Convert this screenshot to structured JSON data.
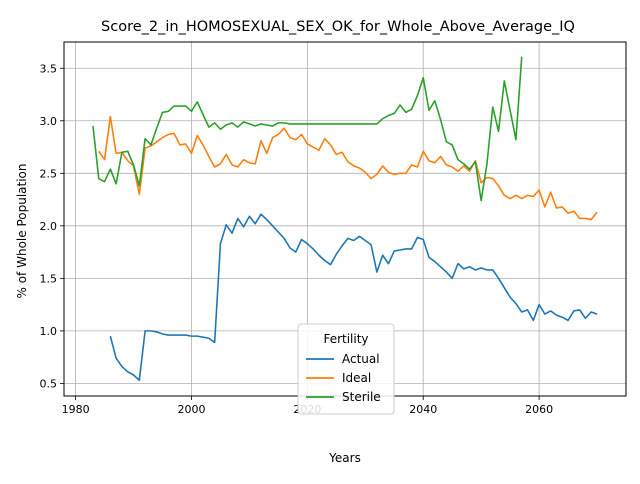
{
  "chart_data": {
    "type": "line",
    "title": "Score_2_in_HOMOSEXUAL_SEX_OK_for_Whole_Above_Average_IQ",
    "xlabel": "Years",
    "ylabel": "% of Whole Population",
    "xlim": [
      1978,
      2075
    ],
    "ylim": [
      0.38,
      3.75
    ],
    "xticks": [
      1980,
      2000,
      2020,
      2040,
      2060
    ],
    "yticks": [
      0.5,
      1.0,
      1.5,
      2.0,
      2.5,
      3.0,
      3.5
    ],
    "grid": true,
    "legend": {
      "title": "Fertility",
      "placement": "lower center"
    },
    "series": [
      {
        "name": "Actual",
        "color": "#1f77b4",
        "points": [
          [
            1986,
            0.95
          ],
          [
            1987,
            0.74
          ],
          [
            1988,
            0.66
          ],
          [
            1989,
            0.61
          ],
          [
            1990,
            0.58
          ],
          [
            1991,
            0.53
          ],
          [
            1992,
            1.0
          ],
          [
            1993,
            1.0
          ],
          [
            1994,
            0.99
          ],
          [
            1995,
            0.97
          ],
          [
            1996,
            0.96
          ],
          [
            1997,
            0.96
          ],
          [
            1998,
            0.96
          ],
          [
            1999,
            0.96
          ],
          [
            2000,
            0.95
          ],
          [
            2001,
            0.95
          ],
          [
            2002,
            0.94
          ],
          [
            2003,
            0.93
          ],
          [
            2004,
            0.89
          ],
          [
            2005,
            1.83
          ],
          [
            2006,
            2.01
          ],
          [
            2007,
            1.93
          ],
          [
            2008,
            2.07
          ],
          [
            2009,
            1.99
          ],
          [
            2010,
            2.09
          ],
          [
            2011,
            2.02
          ],
          [
            2012,
            2.11
          ],
          [
            2013,
            2.06
          ],
          [
            2014,
            2.0
          ],
          [
            2015,
            1.94
          ],
          [
            2016,
            1.88
          ],
          [
            2017,
            1.79
          ],
          [
            2018,
            1.75
          ],
          [
            2019,
            1.87
          ],
          [
            2020,
            1.83
          ],
          [
            2021,
            1.78
          ],
          [
            2022,
            1.72
          ],
          [
            2023,
            1.67
          ],
          [
            2024,
            1.63
          ],
          [
            2025,
            1.73
          ],
          [
            2026,
            1.81
          ],
          [
            2027,
            1.88
          ],
          [
            2028,
            1.86
          ],
          [
            2029,
            1.9
          ],
          [
            2030,
            1.86
          ],
          [
            2031,
            1.82
          ],
          [
            2032,
            1.56
          ],
          [
            2033,
            1.72
          ],
          [
            2034,
            1.64
          ],
          [
            2035,
            1.76
          ],
          [
            2036,
            1.77
          ],
          [
            2037,
            1.78
          ],
          [
            2038,
            1.78
          ],
          [
            2039,
            1.89
          ],
          [
            2040,
            1.87
          ],
          [
            2041,
            1.7
          ],
          [
            2042,
            1.66
          ],
          [
            2043,
            1.61
          ],
          [
            2044,
            1.56
          ],
          [
            2045,
            1.5
          ],
          [
            2046,
            1.64
          ],
          [
            2047,
            1.59
          ],
          [
            2048,
            1.61
          ],
          [
            2049,
            1.58
          ],
          [
            2050,
            1.6
          ],
          [
            2051,
            1.58
          ],
          [
            2052,
            1.58
          ],
          [
            2053,
            1.5
          ],
          [
            2054,
            1.41
          ],
          [
            2055,
            1.32
          ],
          [
            2056,
            1.26
          ],
          [
            2057,
            1.18
          ],
          [
            2058,
            1.2
          ],
          [
            2059,
            1.1
          ],
          [
            2060,
            1.25
          ],
          [
            2061,
            1.16
          ],
          [
            2062,
            1.19
          ],
          [
            2063,
            1.15
          ],
          [
            2064,
            1.13
          ],
          [
            2065,
            1.1
          ],
          [
            2066,
            1.19
          ],
          [
            2067,
            1.2
          ],
          [
            2068,
            1.12
          ],
          [
            2069,
            1.18
          ],
          [
            2070,
            1.16
          ]
        ]
      },
      {
        "name": "Ideal",
        "color": "#ff7f0e",
        "points": [
          [
            1984,
            2.71
          ],
          [
            1985,
            2.63
          ],
          [
            1986,
            3.04
          ],
          [
            1987,
            2.69
          ],
          [
            1988,
            2.7
          ],
          [
            1989,
            2.62
          ],
          [
            1990,
            2.57
          ],
          [
            1991,
            2.3
          ],
          [
            1992,
            2.74
          ],
          [
            1993,
            2.76
          ],
          [
            1994,
            2.8
          ],
          [
            1995,
            2.84
          ],
          [
            1996,
            2.87
          ],
          [
            1997,
            2.88
          ],
          [
            1998,
            2.77
          ],
          [
            1999,
            2.78
          ],
          [
            2000,
            2.69
          ],
          [
            2001,
            2.86
          ],
          [
            2002,
            2.77
          ],
          [
            2003,
            2.66
          ],
          [
            2004,
            2.56
          ],
          [
            2005,
            2.59
          ],
          [
            2006,
            2.68
          ],
          [
            2007,
            2.58
          ],
          [
            2008,
            2.56
          ],
          [
            2009,
            2.63
          ],
          [
            2010,
            2.6
          ],
          [
            2011,
            2.59
          ],
          [
            2012,
            2.81
          ],
          [
            2013,
            2.69
          ],
          [
            2014,
            2.84
          ],
          [
            2015,
            2.87
          ],
          [
            2016,
            2.93
          ],
          [
            2017,
            2.84
          ],
          [
            2018,
            2.82
          ],
          [
            2019,
            2.87
          ],
          [
            2020,
            2.78
          ],
          [
            2021,
            2.75
          ],
          [
            2022,
            2.72
          ],
          [
            2023,
            2.83
          ],
          [
            2024,
            2.77
          ],
          [
            2025,
            2.68
          ],
          [
            2026,
            2.7
          ],
          [
            2027,
            2.61
          ],
          [
            2028,
            2.57
          ],
          [
            2029,
            2.55
          ],
          [
            2030,
            2.51
          ],
          [
            2031,
            2.45
          ],
          [
            2032,
            2.49
          ],
          [
            2033,
            2.57
          ],
          [
            2034,
            2.51
          ],
          [
            2035,
            2.49
          ],
          [
            2036,
            2.5
          ],
          [
            2037,
            2.5
          ],
          [
            2038,
            2.58
          ],
          [
            2039,
            2.56
          ],
          [
            2040,
            2.71
          ],
          [
            2041,
            2.62
          ],
          [
            2042,
            2.6
          ],
          [
            2043,
            2.66
          ],
          [
            2044,
            2.58
          ],
          [
            2045,
            2.56
          ],
          [
            2046,
            2.52
          ],
          [
            2047,
            2.57
          ],
          [
            2048,
            2.52
          ],
          [
            2049,
            2.62
          ],
          [
            2050,
            2.41
          ],
          [
            2051,
            2.46
          ],
          [
            2052,
            2.45
          ],
          [
            2053,
            2.38
          ],
          [
            2054,
            2.29
          ],
          [
            2055,
            2.26
          ],
          [
            2056,
            2.29
          ],
          [
            2057,
            2.26
          ],
          [
            2058,
            2.29
          ],
          [
            2059,
            2.28
          ],
          [
            2060,
            2.34
          ],
          [
            2061,
            2.18
          ],
          [
            2062,
            2.32
          ],
          [
            2063,
            2.17
          ],
          [
            2064,
            2.18
          ],
          [
            2065,
            2.12
          ],
          [
            2066,
            2.14
          ],
          [
            2067,
            2.07
          ],
          [
            2068,
            2.07
          ],
          [
            2069,
            2.06
          ],
          [
            2070,
            2.13
          ]
        ]
      },
      {
        "name": "Sterile",
        "color": "#2ca02c",
        "points": [
          [
            1983,
            2.95
          ],
          [
            1984,
            2.45
          ],
          [
            1985,
            2.42
          ],
          [
            1986,
            2.54
          ],
          [
            1987,
            2.4
          ],
          [
            1988,
            2.7
          ],
          [
            1989,
            2.71
          ],
          [
            1990,
            2.58
          ],
          [
            1991,
            2.38
          ],
          [
            1992,
            2.83
          ],
          [
            1993,
            2.77
          ],
          [
            1994,
            2.93
          ],
          [
            1995,
            3.08
          ],
          [
            1996,
            3.09
          ],
          [
            1997,
            3.14
          ],
          [
            1998,
            3.14
          ],
          [
            1999,
            3.14
          ],
          [
            2000,
            3.09
          ],
          [
            2001,
            3.18
          ],
          [
            2002,
            3.06
          ],
          [
            2003,
            2.94
          ],
          [
            2004,
            2.98
          ],
          [
            2005,
            2.92
          ],
          [
            2006,
            2.96
          ],
          [
            2007,
            2.98
          ],
          [
            2008,
            2.94
          ],
          [
            2009,
            2.99
          ],
          [
            2010,
            2.97
          ],
          [
            2011,
            2.95
          ],
          [
            2012,
            2.97
          ],
          [
            2013,
            2.96
          ],
          [
            2014,
            2.95
          ],
          [
            2015,
            2.98
          ],
          [
            2016,
            2.98
          ],
          [
            2017,
            2.97
          ],
          [
            2018,
            2.97
          ],
          [
            2019,
            2.97
          ],
          [
            2020,
            2.97
          ],
          [
            2021,
            2.97
          ],
          [
            2022,
            2.97
          ],
          [
            2023,
            2.97
          ],
          [
            2024,
            2.97
          ],
          [
            2025,
            2.97
          ],
          [
            2026,
            2.97
          ],
          [
            2027,
            2.97
          ],
          [
            2028,
            2.97
          ],
          [
            2029,
            2.97
          ],
          [
            2030,
            2.97
          ],
          [
            2031,
            2.97
          ],
          [
            2032,
            2.97
          ],
          [
            2033,
            3.02
          ],
          [
            2034,
            3.05
          ],
          [
            2035,
            3.07
          ],
          [
            2036,
            3.15
          ],
          [
            2037,
            3.08
          ],
          [
            2038,
            3.11
          ],
          [
            2039,
            3.24
          ],
          [
            2040,
            3.41
          ],
          [
            2041,
            3.1
          ],
          [
            2042,
            3.19
          ],
          [
            2043,
            3.01
          ],
          [
            2044,
            2.8
          ],
          [
            2045,
            2.77
          ],
          [
            2046,
            2.63
          ],
          [
            2047,
            2.59
          ],
          [
            2048,
            2.54
          ],
          [
            2049,
            2.61
          ],
          [
            2050,
            2.24
          ],
          [
            2051,
            2.59
          ],
          [
            2052,
            3.13
          ],
          [
            2053,
            2.9
          ],
          [
            2054,
            3.38
          ],
          [
            2055,
            3.1
          ],
          [
            2056,
            2.82
          ],
          [
            2057,
            3.61
          ]
        ]
      }
    ]
  }
}
